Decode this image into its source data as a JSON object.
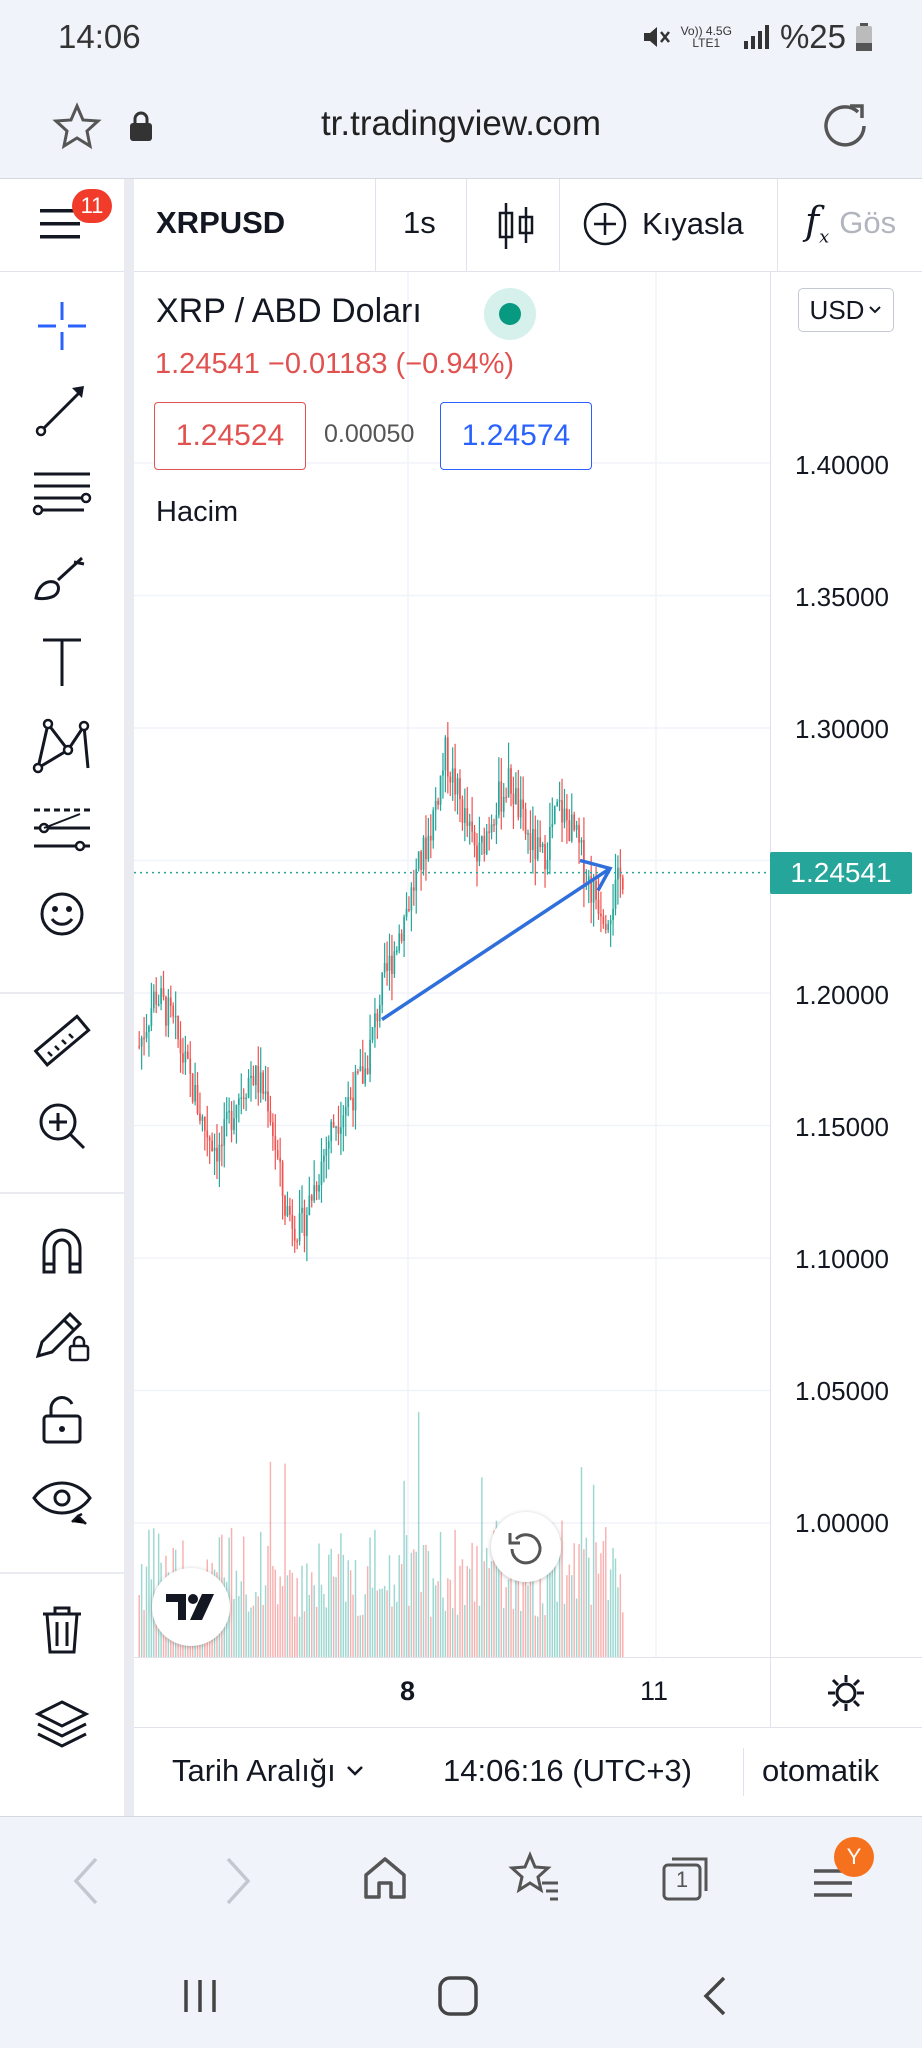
{
  "status_bar": {
    "time": "14:06",
    "network_top": "Vo)) 4.5G",
    "network_bottom": "LTE1",
    "battery": "%25"
  },
  "browser": {
    "url": "tr.tradingview.com"
  },
  "chart_toolbar": {
    "menu_badge": "11",
    "symbol": "XRPUSD",
    "interval": "1s",
    "compare_label": "Kıyasla",
    "indicators_label": "Gös"
  },
  "legend": {
    "title": "XRP / ABD Doları",
    "quote": "1.24541  −0.01183 (−0.94%)",
    "bid": "1.24524",
    "spread": "0.00050",
    "ask": "1.24574",
    "volume_label": "Hacim"
  },
  "price_axis": {
    "currency": "USD",
    "ticks": [
      "1.40000",
      "1.35000",
      "1.30000",
      "1.20000",
      "1.15000",
      "1.10000",
      "1.05000",
      "1.00000"
    ],
    "last_price": "1.24541"
  },
  "time_axis": {
    "ticks": [
      "8",
      "11"
    ]
  },
  "bottom_bar": {
    "date_range_label": "Tarih Aralığı",
    "clock": "14:06:16 (UTC+3)",
    "scale_mode": "otomatik"
  },
  "browser_nav": {
    "tabs_count": "1",
    "profile_initial": "Y"
  },
  "colors": {
    "up": "#26a69a",
    "down": "#ef5350",
    "drawing": "#2f6fdc",
    "accent": "#2962ff"
  },
  "chart_data": {
    "type": "candlestick",
    "symbol": "XRPUSD",
    "ylim": [
      0.95,
      1.45
    ],
    "close_path": [
      1.18,
      1.2,
      1.19,
      1.17,
      1.15,
      1.14,
      1.16,
      1.17,
      1.16,
      1.12,
      1.11,
      1.13,
      1.15,
      1.16,
      1.17,
      1.2,
      1.22,
      1.24,
      1.26,
      1.29,
      1.27,
      1.25,
      1.27,
      1.28,
      1.26,
      1.25,
      1.27,
      1.26,
      1.24,
      1.23,
      1.245
    ],
    "last_price": 1.24541,
    "trend_arrow": {
      "from_y": 1.19,
      "to_y": 1.247
    }
  }
}
